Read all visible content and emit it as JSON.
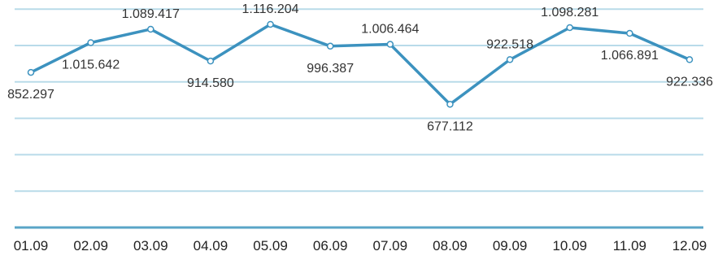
{
  "chart_data": {
    "type": "line",
    "categories": [
      "01.09",
      "02.09",
      "03.09",
      "04.09",
      "05.09",
      "06.09",
      "07.09",
      "08.09",
      "09.09",
      "10.09",
      "11.09",
      "12.09"
    ],
    "series": [
      {
        "values": [
          852297,
          1015642,
          1089417,
          914580,
          1116204,
          996387,
          1006464,
          677112,
          922518,
          1098281,
          1066891,
          922336
        ],
        "labels": [
          "852.297",
          "1.015.642",
          "1.089.417",
          "914.580",
          "1.116.204",
          "996.387",
          "1.006.464",
          "677.112",
          "922.518",
          "1.098.281",
          "1.066.891",
          "922.336"
        ]
      }
    ],
    "title": "",
    "xlabel": "",
    "ylabel": "",
    "ylim": [
      0,
      1250000
    ],
    "grid": true,
    "legend": "none",
    "colors": {
      "line": "#3c92bf",
      "grid": "#b9dbe9",
      "baseline": "#5aa5c7"
    }
  }
}
